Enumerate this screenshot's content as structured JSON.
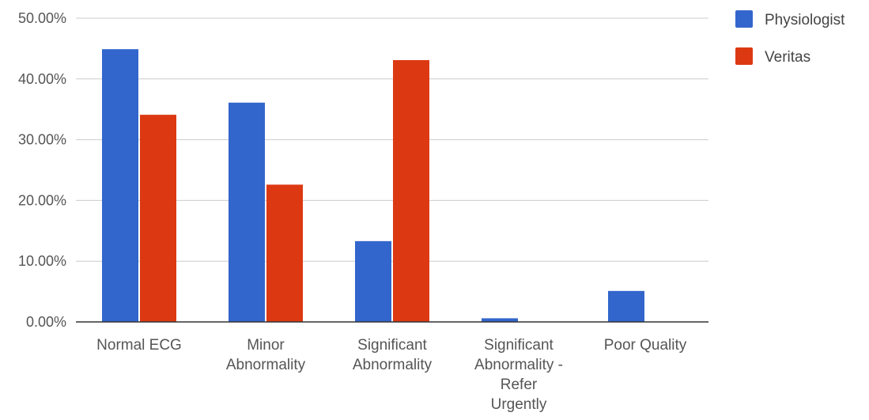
{
  "chart_data": {
    "type": "bar",
    "categories": [
      [
        "Normal ECG"
      ],
      [
        "Minor",
        "Abnormality"
      ],
      [
        "Significant",
        "Abnormality"
      ],
      [
        "Significant",
        "Abnormality -",
        "Refer",
        "Urgently"
      ],
      [
        "Poor Quality"
      ]
    ],
    "series": [
      {
        "name": "Physiologist",
        "color": "#3366cc",
        "values": [
          44.9,
          36.1,
          13.3,
          0.6,
          5.1
        ]
      },
      {
        "name": "Veritas",
        "color": "#dc3912",
        "values": [
          34.1,
          22.6,
          43.1,
          0.0,
          0.0
        ]
      }
    ],
    "ylim": [
      0,
      50
    ],
    "yticks": [
      "0.00%",
      "10.00%",
      "20.00%",
      "30.00%",
      "40.00%",
      "50.00%"
    ],
    "grid": true,
    "legend_position": "right"
  }
}
